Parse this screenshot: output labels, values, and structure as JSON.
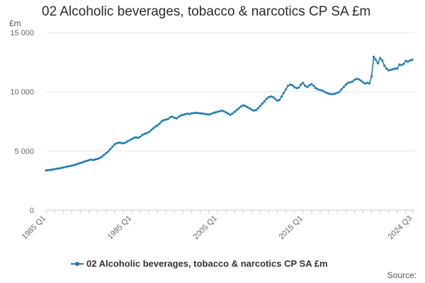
{
  "chart_data": {
    "type": "line",
    "title": "02 Alcoholic beverages, tobacco & narcotics CP SA £m",
    "ylabel": "£m",
    "xlabel": "",
    "ylim": [
      0,
      15000
    ],
    "ytick_values": [
      0,
      5000,
      10000,
      15000
    ],
    "ytick_labels": [
      "0",
      "5 000",
      "10 000",
      "15 000"
    ],
    "xtick_labels": [
      "1985 Q1",
      "1995 Q1",
      "2005 Q1",
      "2015 Q1",
      "2024 Q3"
    ],
    "grid": true,
    "legend_position": "bottom",
    "series_color": "#1f7ab7",
    "series": [
      {
        "name": "02 Alcoholic beverages, tobacco & narcotics CP SA £m",
        "x_start": "1985 Q1",
        "x_end": "2024 Q3",
        "values": [
          3350,
          3380,
          3400,
          3430,
          3460,
          3500,
          3520,
          3560,
          3600,
          3640,
          3680,
          3720,
          3760,
          3800,
          3860,
          3920,
          3980,
          4040,
          4100,
          4160,
          4220,
          4260,
          4240,
          4280,
          4320,
          4400,
          4500,
          4650,
          4800,
          4950,
          5150,
          5350,
          5550,
          5650,
          5700,
          5680,
          5650,
          5700,
          5800,
          5900,
          6000,
          6100,
          6150,
          6100,
          6200,
          6350,
          6450,
          6500,
          6600,
          6750,
          6900,
          7050,
          7150,
          7300,
          7500,
          7600,
          7650,
          7700,
          7850,
          7900,
          7800,
          7750,
          7900,
          8000,
          8050,
          8100,
          8150,
          8120,
          8180,
          8200,
          8220,
          8200,
          8180,
          8160,
          8140,
          8100,
          8080,
          8120,
          8200,
          8250,
          8300,
          8350,
          8400,
          8350,
          8250,
          8150,
          8050,
          8150,
          8300,
          8450,
          8600,
          8750,
          8850,
          8800,
          8700,
          8600,
          8500,
          8400,
          8450,
          8600,
          8800,
          9000,
          9200,
          9400,
          9550,
          9600,
          9550,
          9400,
          9250,
          9300,
          9600,
          9900,
          10200,
          10500,
          10600,
          10550,
          10400,
          10300,
          10350,
          10600,
          10750,
          10500,
          10400,
          10550,
          10650,
          10500,
          10300,
          10200,
          10150,
          10100,
          10000,
          9900,
          9850,
          9800,
          9800,
          9850,
          9900,
          10000,
          10200,
          10400,
          10600,
          10750,
          10800,
          10850,
          11000,
          11100,
          11050,
          10950,
          10800,
          10700,
          10750,
          10700,
          11300,
          12950,
          12700,
          12400,
          12850,
          12650,
          12200,
          11950,
          11800,
          11850,
          11900,
          11950,
          11950,
          12300,
          12250,
          12350,
          12600,
          12550,
          12650,
          12700
        ]
      }
    ]
  },
  "source_label": "Source:"
}
